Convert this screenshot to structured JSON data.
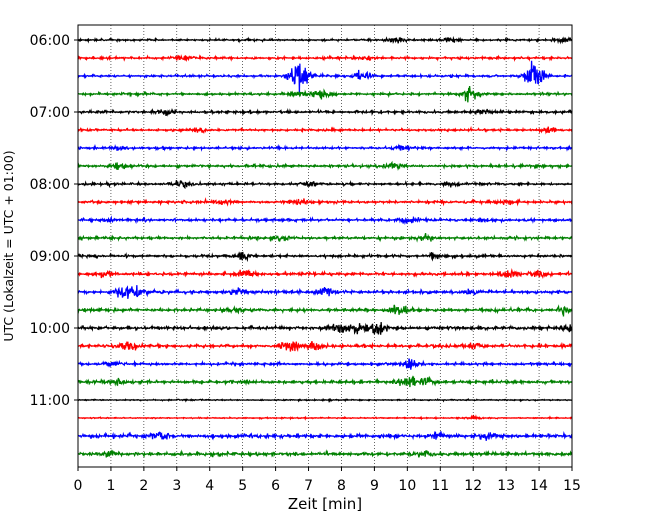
{
  "chart_data": {
    "type": "line",
    "title": "",
    "xlabel": "Zeit  [min]",
    "ylabel": "UTC (Lokalzeit = UTC + 01:00)",
    "xlim": [
      0,
      15
    ],
    "x_ticks": [
      "0",
      "1",
      "2",
      "3",
      "4",
      "5",
      "6",
      "7",
      "8",
      "9",
      "10",
      "11",
      "12",
      "13",
      "14",
      "15"
    ],
    "y_ticks": [
      "06:00",
      "07:00",
      "08:00",
      "09:00",
      "10:00",
      "11:00"
    ],
    "grid": "vertical dotted",
    "colors": [
      "#000000",
      "#ff0000",
      "#0000ff",
      "#008000"
    ],
    "traces": [
      {
        "start": "06:00",
        "color": "#000000",
        "noise": 0.25,
        "events": [
          {
            "x": 9.7,
            "amp": 0.5
          },
          {
            "x": 11.3,
            "amp": 0.4
          },
          {
            "x": 14.8,
            "amp": 0.7
          }
        ]
      },
      {
        "start": "06:15",
        "color": "#ff0000",
        "noise": 0.3,
        "events": [
          {
            "x": 3.2,
            "amp": 0.4
          },
          {
            "x": 8.8,
            "amp": 0.4
          }
        ]
      },
      {
        "start": "06:30",
        "color": "#0000ff",
        "noise": 0.3,
        "events": [
          {
            "x": 6.6,
            "amp": 1.4
          },
          {
            "x": 6.8,
            "amp": 2.5
          },
          {
            "x": 8.6,
            "amp": 0.9
          },
          {
            "x": 13.8,
            "amp": 1.6
          },
          {
            "x": 13.9,
            "amp": 2.4
          }
        ]
      },
      {
        "start": "06:45",
        "color": "#008000",
        "noise": 0.3,
        "events": [
          {
            "x": 7.4,
            "amp": 1.5
          },
          {
            "x": 11.9,
            "amp": 1.6
          },
          {
            "x": 6.7,
            "amp": 0.5
          }
        ]
      },
      {
        "start": "07:00",
        "color": "#000000",
        "noise": 0.35,
        "events": [
          {
            "x": 2.6,
            "amp": 0.6
          },
          {
            "x": 12.3,
            "amp": 0.5
          }
        ]
      },
      {
        "start": "07:15",
        "color": "#ff0000",
        "noise": 0.3,
        "events": [
          {
            "x": 3.7,
            "amp": 0.4
          },
          {
            "x": 14.3,
            "amp": 0.5
          }
        ]
      },
      {
        "start": "07:30",
        "color": "#0000ff",
        "noise": 0.3,
        "events": [
          {
            "x": 1.3,
            "amp": 0.4
          },
          {
            "x": 9.8,
            "amp": 0.4
          }
        ]
      },
      {
        "start": "07:45",
        "color": "#008000",
        "noise": 0.35,
        "events": [
          {
            "x": 1.2,
            "amp": 0.6
          },
          {
            "x": 9.6,
            "amp": 0.5
          }
        ]
      },
      {
        "start": "08:00",
        "color": "#000000",
        "noise": 0.3,
        "events": [
          {
            "x": 3.1,
            "amp": 0.7
          },
          {
            "x": 7.0,
            "amp": 0.5
          },
          {
            "x": 11.3,
            "amp": 0.5
          }
        ]
      },
      {
        "start": "08:15",
        "color": "#ff0000",
        "noise": 0.35,
        "events": [
          {
            "x": 4.4,
            "amp": 0.5
          },
          {
            "x": 6.7,
            "amp": 0.5
          },
          {
            "x": 13.0,
            "amp": 0.4
          }
        ]
      },
      {
        "start": "08:30",
        "color": "#0000ff",
        "noise": 0.35,
        "events": [
          {
            "x": 10.0,
            "amp": 0.7
          },
          {
            "x": 1.0,
            "amp": 0.4
          },
          {
            "x": 12.4,
            "amp": 0.4
          }
        ]
      },
      {
        "start": "08:45",
        "color": "#008000",
        "noise": 0.35,
        "events": [
          {
            "x": 10.5,
            "amp": 0.9
          },
          {
            "x": 6.2,
            "amp": 0.5
          }
        ]
      },
      {
        "start": "09:00",
        "color": "#000000",
        "noise": 0.35,
        "events": [
          {
            "x": 5.0,
            "amp": 0.6
          },
          {
            "x": 10.9,
            "amp": 0.6
          }
        ]
      },
      {
        "start": "09:15",
        "color": "#ff0000",
        "noise": 0.4,
        "events": [
          {
            "x": 0.8,
            "amp": 0.6
          },
          {
            "x": 5.1,
            "amp": 0.7
          },
          {
            "x": 13.1,
            "amp": 0.9
          },
          {
            "x": 14.0,
            "amp": 0.6
          }
        ]
      },
      {
        "start": "09:30",
        "color": "#0000ff",
        "noise": 0.4,
        "events": [
          {
            "x": 1.4,
            "amp": 1.3
          },
          {
            "x": 1.8,
            "amp": 1.0
          },
          {
            "x": 4.9,
            "amp": 0.8
          },
          {
            "x": 7.5,
            "amp": 0.8
          },
          {
            "x": 11.9,
            "amp": 0.8
          }
        ]
      },
      {
        "start": "09:45",
        "color": "#008000",
        "noise": 0.4,
        "events": [
          {
            "x": 4.7,
            "amp": 0.6
          },
          {
            "x": 9.7,
            "amp": 1.4
          },
          {
            "x": 14.8,
            "amp": 0.9
          }
        ]
      },
      {
        "start": "10:00",
        "color": "#000000",
        "noise": 0.45,
        "events": [
          {
            "x": 8.0,
            "amp": 1.0
          },
          {
            "x": 8.5,
            "amp": 1.2
          },
          {
            "x": 9.1,
            "amp": 1.3
          },
          {
            "x": 14.9,
            "amp": 0.8
          }
        ]
      },
      {
        "start": "10:15",
        "color": "#ff0000",
        "noise": 0.4,
        "events": [
          {
            "x": 1.5,
            "amp": 1.1
          },
          {
            "x": 6.4,
            "amp": 1.0
          },
          {
            "x": 7.2,
            "amp": 0.8
          },
          {
            "x": 12.0,
            "amp": 0.6
          }
        ]
      },
      {
        "start": "10:30",
        "color": "#0000ff",
        "noise": 0.35,
        "events": [
          {
            "x": 10.1,
            "amp": 0.9
          },
          {
            "x": 1.1,
            "amp": 0.5
          }
        ]
      },
      {
        "start": "10:45",
        "color": "#008000",
        "noise": 0.4,
        "events": [
          {
            "x": 10.0,
            "amp": 1.6
          },
          {
            "x": 10.6,
            "amp": 0.8
          },
          {
            "x": 1.2,
            "amp": 0.6
          }
        ]
      },
      {
        "start": "11:00",
        "color": "#000000",
        "noise": 0.15,
        "events": []
      },
      {
        "start": "11:15",
        "color": "#ff0000",
        "noise": 0.15,
        "events": [
          {
            "x": 12.0,
            "amp": 0.3
          }
        ]
      },
      {
        "start": "11:30",
        "color": "#0000ff",
        "noise": 0.5,
        "events": [
          {
            "x": 2.5,
            "amp": 0.8
          },
          {
            "x": 10.9,
            "amp": 0.7
          },
          {
            "x": 12.4,
            "amp": 0.6
          }
        ]
      },
      {
        "start": "11:45",
        "color": "#008000",
        "noise": 0.45,
        "events": [
          {
            "x": 1.0,
            "amp": 0.5
          },
          {
            "x": 10.5,
            "amp": 0.5
          }
        ]
      }
    ]
  }
}
